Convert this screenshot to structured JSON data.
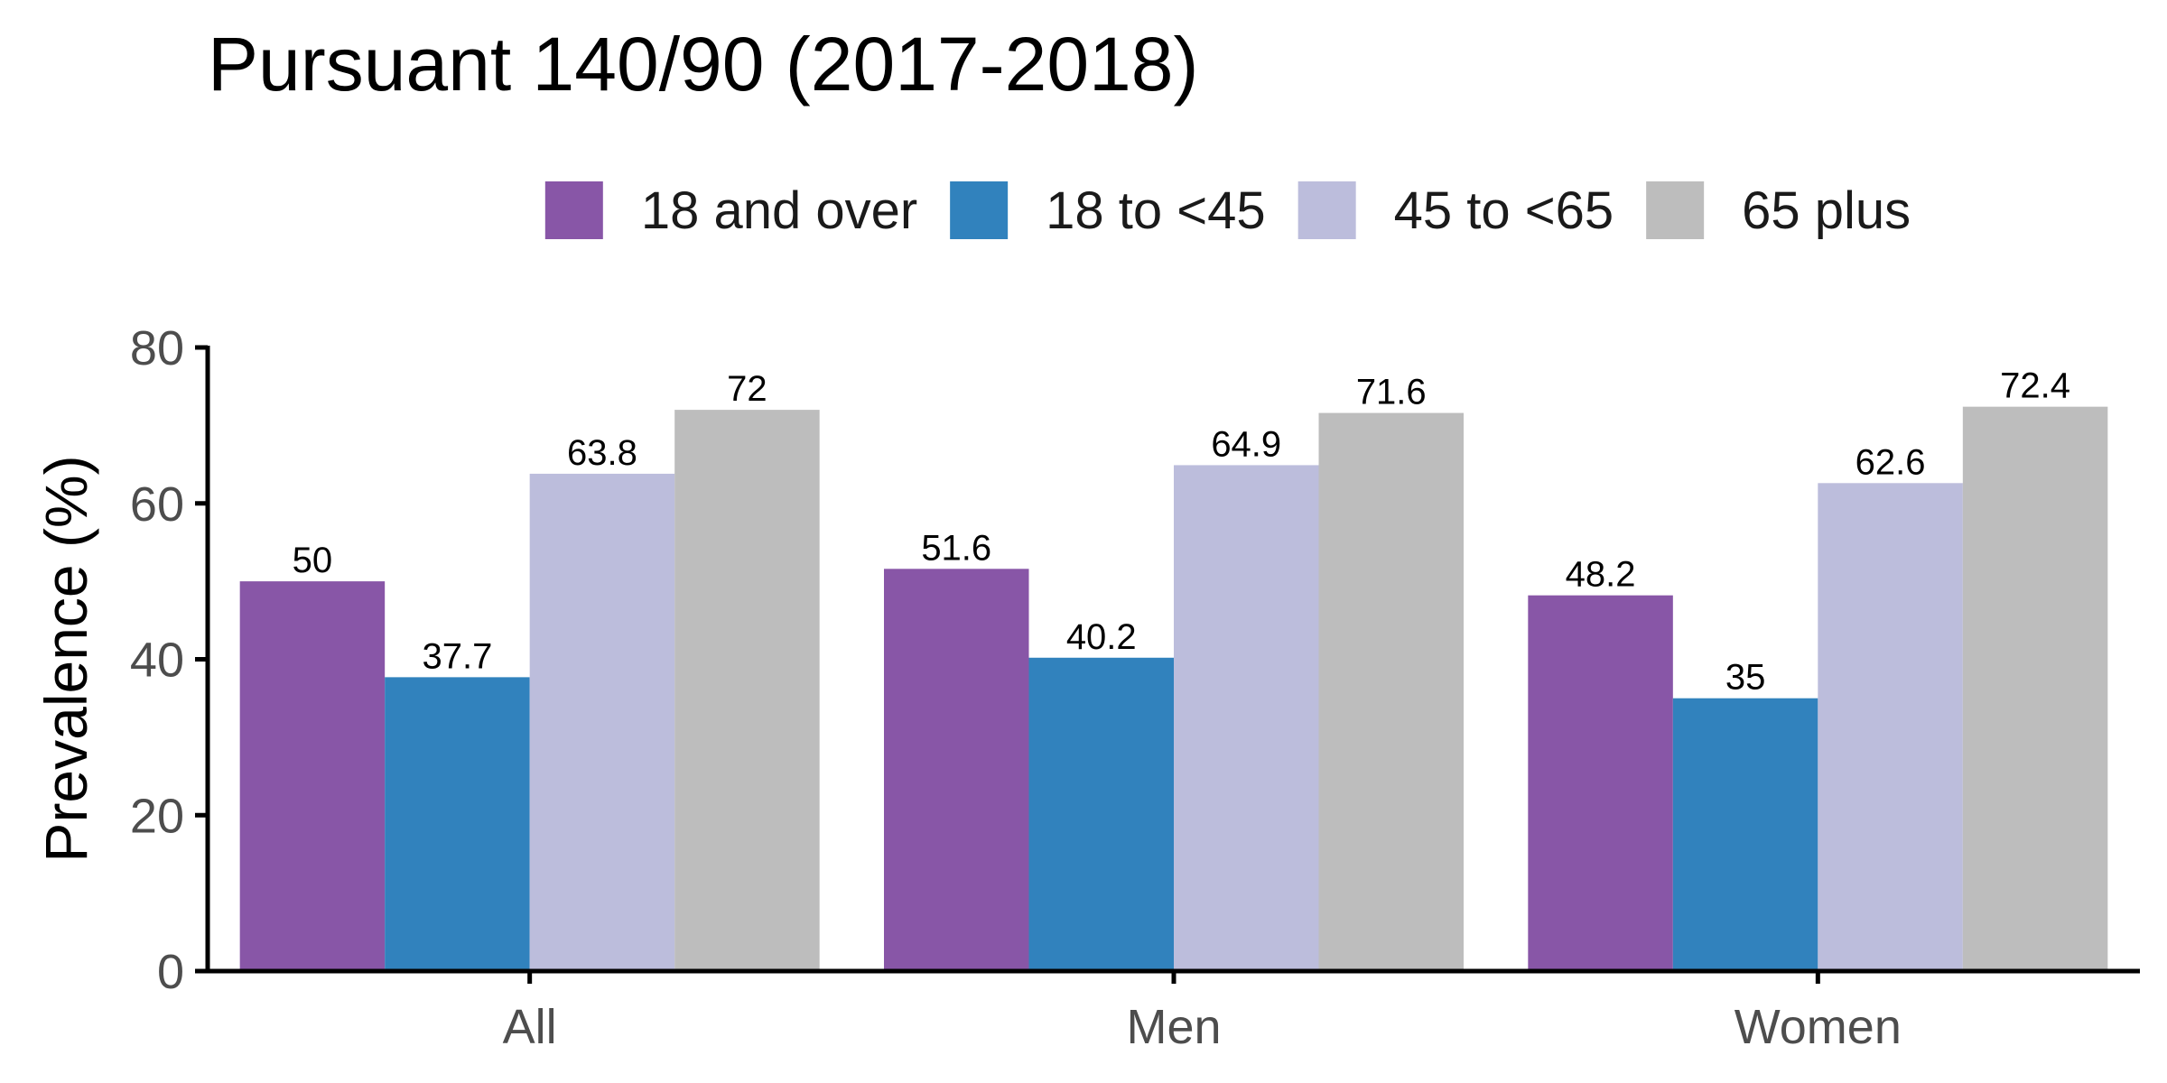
{
  "chart_data": {
    "type": "bar",
    "title": "Pursuant 140/90 (2017-2018)",
    "ylabel": "Prevalence (%)",
    "xlabel": "",
    "ylim": [
      0,
      80
    ],
    "yticks": [
      0,
      20,
      40,
      60,
      80
    ],
    "legend_position": "top",
    "grid": false,
    "categories": [
      "All",
      "Men",
      "Women"
    ],
    "series": [
      {
        "name": "18 and over",
        "color": "#8856a7",
        "values": [
          50,
          51.6,
          48.2
        ],
        "labels": [
          "50",
          "51.6",
          "48.2"
        ]
      },
      {
        "name": "18 to <45",
        "color": "#3182bd",
        "values": [
          37.7,
          40.2,
          35
        ],
        "labels": [
          "37.7",
          "40.2",
          "35"
        ]
      },
      {
        "name": "45 to <65",
        "color": "#bcbddc",
        "values": [
          63.8,
          64.9,
          62.6
        ],
        "labels": [
          "63.8",
          "64.9",
          "62.6"
        ]
      },
      {
        "name": "65 plus",
        "color": "#bdbdbd",
        "values": [
          72,
          71.6,
          72.4
        ],
        "labels": [
          "72",
          "71.6",
          "72.4"
        ]
      }
    ]
  }
}
